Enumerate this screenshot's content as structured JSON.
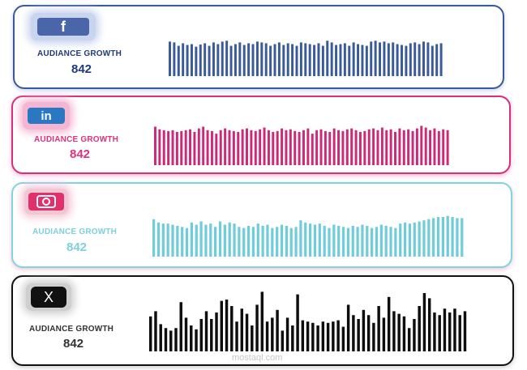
{
  "cards": [
    {
      "platform": "facebook",
      "icon": "facebook-icon",
      "icon_glyph": "f",
      "label": "AUDIANCE GROWTH",
      "value": "842",
      "colors": {
        "border": "#3b5998",
        "bars": "#3b5a98",
        "label": "#1f3c78",
        "value": "#1f3c78",
        "icon_bg": "#4a66a8",
        "icon_glow": "#c9d4ee"
      },
      "chart_data": {
        "type": "bar",
        "values": [
          82,
          80,
          72,
          78,
          74,
          76,
          70,
          75,
          78,
          72,
          80,
          76,
          82,
          84,
          72,
          76,
          80,
          74,
          78,
          76,
          82,
          80,
          78,
          72,
          76,
          80,
          74,
          78,
          76,
          72,
          80,
          78,
          76,
          74,
          78,
          72,
          84,
          80,
          74,
          76,
          78,
          72,
          80,
          76,
          74,
          72,
          82,
          84,
          80,
          82,
          78,
          80,
          76,
          74,
          72,
          78,
          80,
          76,
          82,
          80,
          72,
          76,
          78
        ],
        "ylim": [
          0,
          100
        ]
      }
    },
    {
      "platform": "linkedin",
      "icon": "linkedin-icon",
      "icon_glyph": "in",
      "label": "AUDIANCE GROWTH",
      "value": "842",
      "colors": {
        "border": "#d6307a",
        "bars": "#cc2a76",
        "label": "#e0307e",
        "value": "#e0307e",
        "icon_bg": "#2a78c2",
        "icon_glow": "#f4b6d2"
      },
      "chart_data": {
        "type": "bar",
        "values": [
          88,
          82,
          80,
          78,
          80,
          76,
          78,
          80,
          82,
          76,
          84,
          88,
          80,
          78,
          72,
          80,
          84,
          80,
          78,
          76,
          82,
          84,
          80,
          78,
          82,
          86,
          80,
          76,
          78,
          84,
          80,
          82,
          78,
          76,
          80,
          84,
          72,
          80,
          82,
          78,
          76,
          84,
          80,
          78,
          82,
          84,
          80,
          76,
          78,
          82,
          84,
          80,
          86,
          80,
          82,
          76,
          84,
          80,
          82,
          78,
          84,
          90,
          86,
          80,
          84,
          78,
          82,
          80
        ]
      }
    },
    {
      "platform": "instagram",
      "icon": "instagram-icon",
      "icon_glyph": "",
      "label": "AUDIANCE GROWTH",
      "value": "842",
      "colors": {
        "border": "#7fd4e0",
        "bars": "#6fccd8",
        "label": "#7fd0dc",
        "value": "#7fd0dc",
        "icon_bg": "#e2306c",
        "icon_glow": "#f3c6d4"
      },
      "chart_data": {
        "type": "bar",
        "values": [
          68,
          62,
          60,
          60,
          58,
          56,
          54,
          52,
          62,
          58,
          64,
          58,
          60,
          54,
          64,
          58,
          62,
          60,
          54,
          52,
          56,
          54,
          60,
          56,
          58,
          52,
          54,
          58,
          56,
          52,
          54,
          66,
          62,
          60,
          58,
          60,
          56,
          52,
          58,
          56,
          54,
          52,
          56,
          54,
          58,
          56,
          52,
          54,
          58,
          56,
          54,
          52,
          60,
          62,
          60,
          62,
          64,
          66,
          68,
          70,
          72,
          72,
          74,
          72,
          70,
          70
        ]
      }
    },
    {
      "platform": "x",
      "icon": "x-logo-icon",
      "icon_glyph": "X",
      "label": "AUDIANCE GROWTH",
      "value": "842",
      "colors": {
        "border": "#111111",
        "bars": "#0d0d0d",
        "label": "#333333",
        "value": "#333333",
        "icon_bg": "#111111",
        "icon_glow": "#cfcfcf"
      },
      "chart_data": {
        "type": "bar",
        "values": [
          54,
          62,
          42,
          36,
          32,
          36,
          76,
          52,
          40,
          34,
          50,
          62,
          50,
          60,
          78,
          80,
          70,
          46,
          66,
          58,
          40,
          72,
          92,
          46,
          52,
          64,
          32,
          52,
          40,
          88,
          48,
          46,
          44,
          40,
          46,
          44,
          46,
          48,
          38,
          72,
          56,
          50,
          64,
          56,
          44,
          70,
          52,
          84,
          62,
          58,
          54,
          36,
          50,
          70,
          90,
          82,
          60,
          56,
          66,
          60,
          66,
          56,
          62
        ]
      }
    }
  ],
  "watermark": "mostaql.com"
}
